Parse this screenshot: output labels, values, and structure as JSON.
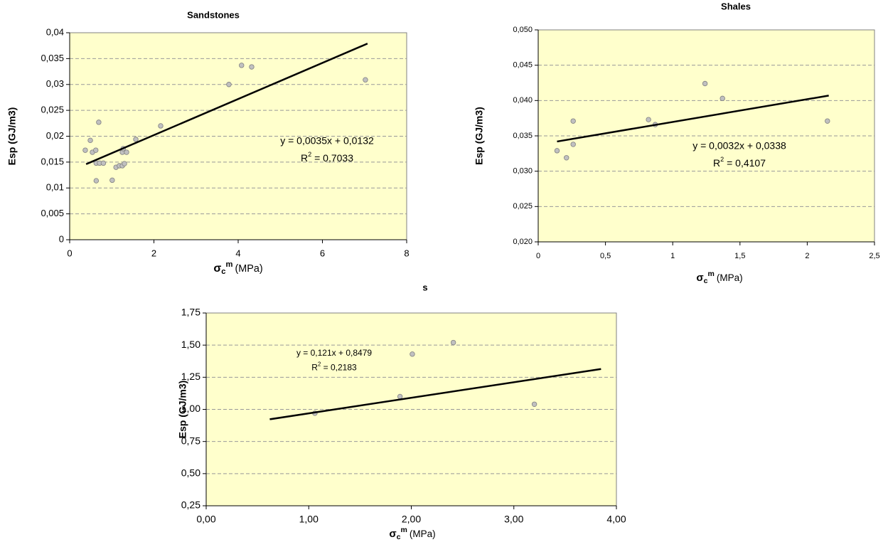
{
  "chart_data": [
    {
      "type": "scatter",
      "title": "Sandstones",
      "ylabel": "Esp (GJ/m3)",
      "xlabel": {
        "symbol": "σ",
        "subscript": "c",
        "superscript": "m",
        "unit": "(MPa)"
      },
      "x": [
        0.37,
        0.49,
        0.54,
        0.62,
        0.63,
        0.71,
        0.8,
        0.69,
        0.63,
        1.01,
        1.1,
        1.18,
        1.25,
        1.3,
        1.25,
        1.35,
        1.27,
        1.57,
        2.16,
        3.78,
        4.08,
        4.32,
        7.02
      ],
      "values": [
        0.0173,
        0.0192,
        0.0169,
        0.0173,
        0.0148,
        0.0148,
        0.0148,
        0.0227,
        0.0114,
        0.0115,
        0.014,
        0.0143,
        0.0143,
        0.0147,
        0.0169,
        0.0169,
        0.0176,
        0.0194,
        0.022,
        0.03,
        0.0337,
        0.0334,
        0.0309
      ],
      "color": "#c0c0c0",
      "trendline": {
        "x": [
          0.39,
          7.07
        ],
        "y": [
          0.0146,
          0.0379
        ]
      },
      "equation": "y = 0,0035x + 0,0132",
      "r_squared": {
        "symbol": "R",
        "superscript": "2",
        "text": " = 0,7033"
      },
      "xlim": [
        0,
        8
      ],
      "xticks": [
        0,
        2,
        4,
        6,
        8
      ],
      "ylim": [
        0,
        0.04
      ],
      "yticks": [
        0,
        {
          "value": 0.005,
          "label": "0,005"
        },
        {
          "value": 0.01,
          "label": "0,01"
        },
        {
          "value": 0.015,
          "label": "0,015"
        },
        {
          "value": 0.02,
          "label": "0,02"
        },
        {
          "value": 0.025,
          "label": "0,025"
        },
        {
          "value": 0.03,
          "label": "0,03"
        },
        {
          "value": 0.035,
          "label": "0,035"
        },
        {
          "value": 0.04,
          "label": "0,04"
        }
      ],
      "grid": true
    },
    {
      "type": "scatter",
      "title": "Shales",
      "ylabel": "Esp (GJ/m3)",
      "xlabel": {
        "symbol": "σ",
        "subscript": "c",
        "superscript": "m",
        "unit": "(MPa)"
      },
      "x": [
        0.14,
        0.21,
        0.26,
        0.26,
        0.82,
        0.87,
        1.24,
        1.37,
        2.15
      ],
      "values": [
        0.0329,
        0.0319,
        0.0371,
        0.0338,
        0.0373,
        0.0366,
        0.0424,
        0.0403,
        0.0371
      ],
      "color": "#c0c0c0",
      "trendline": {
        "x": [
          0.14,
          2.16
        ],
        "y": [
          0.0342,
          0.0407
        ]
      },
      "equation": "y = 0,0032x + 0,0338",
      "r_squared": {
        "symbol": "R",
        "superscript": "2",
        "text": " = 0,4107"
      },
      "xlim": [
        0,
        2.5
      ],
      "xticks": [
        0,
        {
          "value": 0.5,
          "label": "0,5"
        },
        1,
        {
          "value": 1.5,
          "label": "1,5"
        },
        2,
        {
          "value": 2.5,
          "label": "2,5"
        }
      ],
      "ylim": [
        0.02,
        0.05
      ],
      "yticks": [
        {
          "value": 0.02,
          "label": "0,020"
        },
        {
          "value": 0.025,
          "label": "0,025"
        },
        {
          "value": 0.03,
          "label": "0,030"
        },
        {
          "value": 0.035,
          "label": "0,035"
        },
        {
          "value": 0.04,
          "label": "0,040"
        },
        {
          "value": 0.045,
          "label": "0,045"
        },
        {
          "value": 0.05,
          "label": "0,050"
        }
      ],
      "grid": true
    },
    {
      "type": "scatter",
      "title": "s",
      "ylabel": "Esp (GJ/m3)",
      "xlabel": {
        "symbol": "σ",
        "subscript": "c",
        "superscript": "m",
        "unit": "(MPa)"
      },
      "x": [
        1.06,
        1.89,
        2.01,
        2.41,
        3.2
      ],
      "values": [
        0.97,
        1.1,
        1.43,
        1.52,
        1.04
      ],
      "color": "#c0c0c0",
      "trendline": {
        "x": [
          0.62,
          3.85
        ],
        "y": [
          0.923,
          1.314
        ]
      },
      "equation": "y = 0,121x + 0,8479",
      "r_squared": {
        "symbol": "R",
        "superscript": "2",
        "text": " = 0,2183"
      },
      "xlim": [
        0,
        4
      ],
      "xticks": [
        {
          "value": 0,
          "label": "0,00"
        },
        {
          "value": 1,
          "label": "1,00"
        },
        {
          "value": 2,
          "label": "2,00"
        },
        {
          "value": 3,
          "label": "3,00"
        },
        {
          "value": 4,
          "label": "4,00"
        }
      ],
      "ylim": [
        0.25,
        1.75
      ],
      "yticks": [
        {
          "value": 0.25,
          "label": "0,25"
        },
        {
          "value": 0.5,
          "label": "0,50"
        },
        {
          "value": 0.75,
          "label": "0,75"
        },
        {
          "value": 1,
          "label": "1,00"
        },
        {
          "value": 1.25,
          "label": "1,25"
        },
        {
          "value": 1.5,
          "label": "1,50"
        },
        {
          "value": 1.75,
          "label": "1,75"
        }
      ],
      "grid": true
    }
  ]
}
